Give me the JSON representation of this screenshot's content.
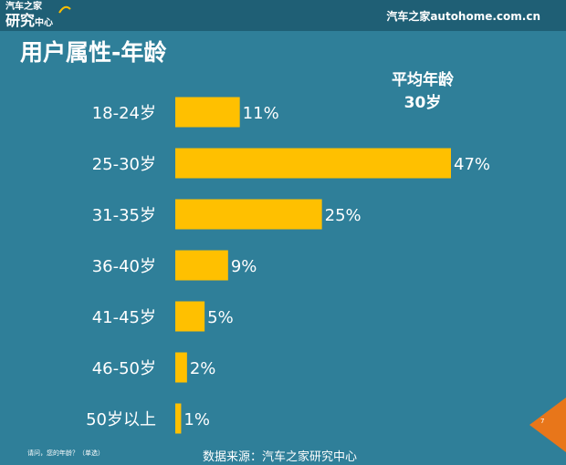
{
  "header": {
    "logo_top": "汽车之家",
    "logo_big": "研究",
    "logo_small": "中心",
    "site": "汽车之家autohome.com.cn"
  },
  "title": "用户属性-年龄",
  "average": {
    "label": "平均年龄",
    "value": "30岁"
  },
  "chart_data": {
    "type": "bar",
    "orientation": "horizontal",
    "categories": [
      "18-24岁",
      "25-30岁",
      "31-35岁",
      "36-40岁",
      "41-45岁",
      "46-50岁",
      "50岁以上"
    ],
    "values": [
      11,
      47,
      25,
      9,
      5,
      2,
      1
    ],
    "data_labels": [
      "11%",
      "47%",
      "25%",
      "9%",
      "5%",
      "2%",
      "1%"
    ],
    "unit": "%",
    "title": "",
    "xlabel": "",
    "ylabel": "",
    "xlim": [
      0,
      47
    ],
    "grid": false,
    "legend": "none"
  },
  "footer": {
    "question": "请问，您的年龄？（单选）",
    "source": "数据来源：汽车之家研究中心",
    "page": "7"
  },
  "colors": {
    "background": "#2f7f99",
    "topbar": "#1f5f75",
    "bar": "#ffc000",
    "text": "#ffffff",
    "accent": "#e8761a"
  }
}
